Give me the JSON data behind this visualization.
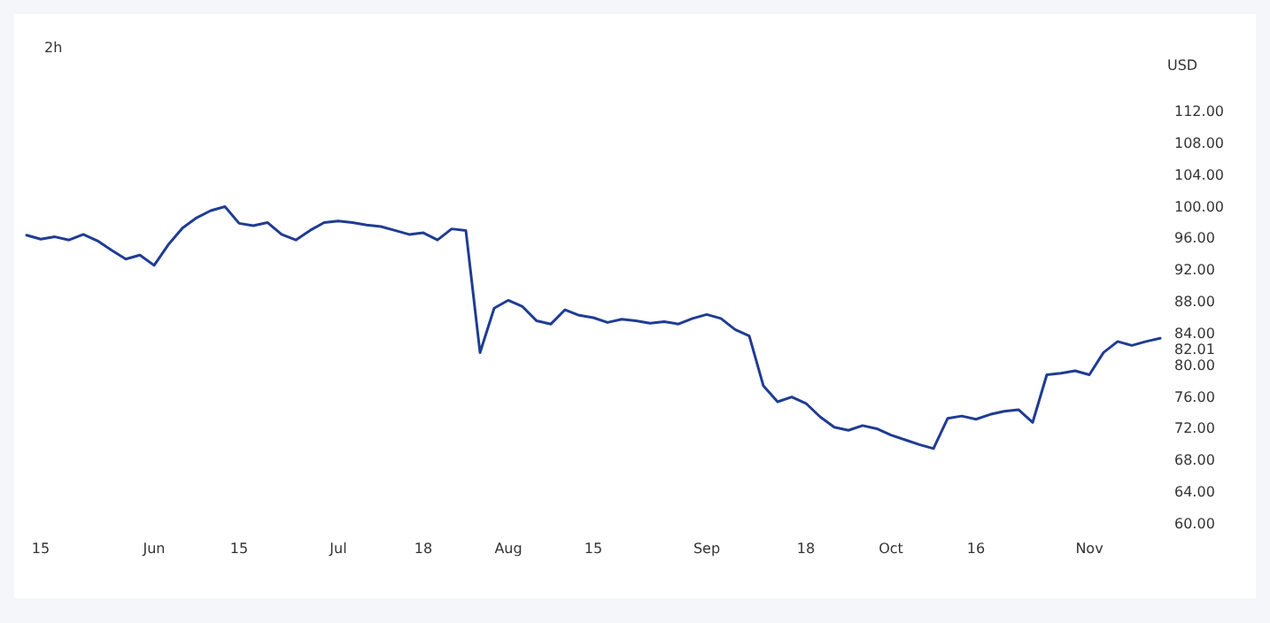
{
  "chart_data": {
    "type": "line",
    "title": "2h",
    "ylabel": "USD",
    "categories": [
      null,
      "15",
      null,
      null,
      null,
      null,
      null,
      null,
      null,
      "Jun",
      null,
      null,
      null,
      null,
      null,
      "15",
      null,
      null,
      null,
      null,
      null,
      null,
      "Jul",
      null,
      null,
      null,
      null,
      null,
      "18",
      null,
      null,
      null,
      null,
      null,
      "Aug",
      null,
      null,
      null,
      null,
      null,
      "15",
      null,
      null,
      null,
      null,
      null,
      null,
      null,
      "Sep",
      null,
      null,
      null,
      null,
      null,
      null,
      "18",
      null,
      null,
      null,
      null,
      null,
      "Oct",
      null,
      null,
      null,
      null,
      null,
      "16",
      null,
      null,
      null,
      null,
      null,
      null,
      null,
      "Nov",
      null,
      null,
      null,
      null,
      null
    ],
    "series": [
      {
        "color": "#1f3c94",
        "values": [
          96.4,
          95.9,
          96.2,
          95.8,
          96.5,
          95.7,
          94.5,
          93.4,
          93.9,
          92.6,
          95.2,
          97.3,
          98.6,
          99.5,
          100.0,
          97.9,
          97.6,
          98.0,
          96.5,
          95.8,
          97.0,
          98.0,
          98.2,
          98.0,
          97.7,
          97.5,
          97.0,
          96.5,
          96.7,
          95.8,
          97.2,
          97.0,
          81.6,
          87.2,
          88.2,
          87.4,
          85.6,
          85.2,
          87.0,
          86.3,
          86.0,
          85.4,
          85.8,
          85.6,
          85.3,
          85.5,
          85.2,
          85.9,
          86.4,
          85.9,
          84.5,
          83.7,
          77.4,
          75.4,
          76.0,
          75.2,
          73.5,
          72.2,
          71.8,
          72.4,
          72.0,
          71.2,
          70.6,
          70.0,
          69.5,
          73.3,
          73.6,
          73.2,
          73.8,
          74.2,
          74.4,
          72.8,
          78.8,
          79.0,
          79.3,
          78.8,
          81.6,
          83.0,
          82.5,
          83.0,
          83.4
        ]
      }
    ],
    "ylim": [
      60,
      112
    ],
    "yticks": [
      {
        "value": 60,
        "label": "60.00"
      },
      {
        "value": 64,
        "label": "64.00"
      },
      {
        "value": 68,
        "label": "68.00"
      },
      {
        "value": 72,
        "label": "72.00"
      },
      {
        "value": 76,
        "label": "76.00"
      },
      {
        "value": 80,
        "label": "80.00"
      },
      {
        "value": 82.01,
        "label": "82.01"
      },
      {
        "value": 84,
        "label": "84.00"
      },
      {
        "value": 88,
        "label": "88.00"
      },
      {
        "value": 92,
        "label": "92.00"
      },
      {
        "value": 96,
        "label": "96.00"
      },
      {
        "value": 100,
        "label": "100.00"
      },
      {
        "value": 104,
        "label": "104.00"
      },
      {
        "value": 108,
        "label": "108.00"
      },
      {
        "value": 112,
        "label": "112.00"
      }
    ],
    "grid": false,
    "marker": "none",
    "line_style": "solid"
  }
}
